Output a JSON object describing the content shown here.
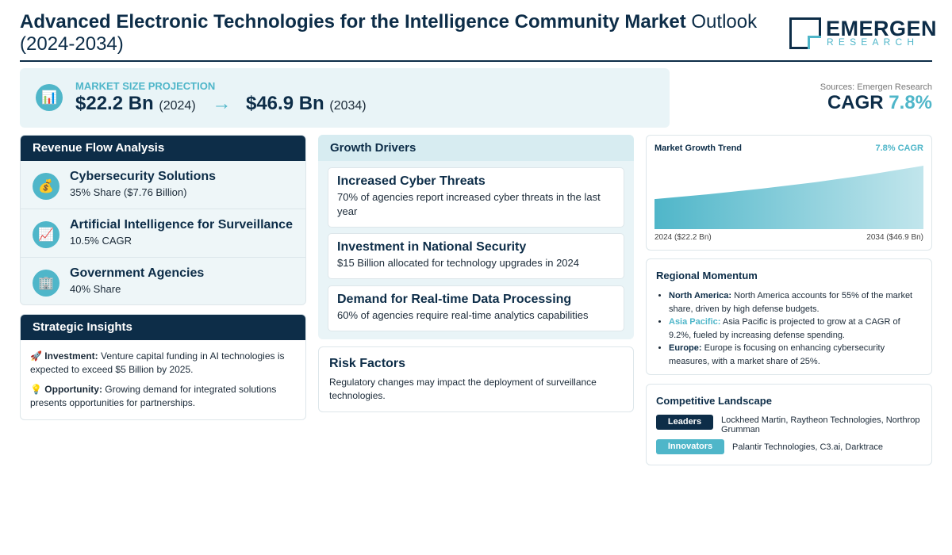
{
  "header": {
    "title_bold": "Advanced Electronic Technologies for the Intelligence Community Market",
    "title_light": "Outlook (2024-2034)",
    "logo_word": "EMERGEN",
    "logo_sub": "RESEARCH"
  },
  "projection": {
    "icon": "bar-chart-icon",
    "label": "MARKET SIZE PROJECTION",
    "start_value": "$22.2 Bn",
    "start_year": "(2024)",
    "arrow": "→",
    "end_value": "$46.9 Bn",
    "end_year": "(2034)"
  },
  "summary": {
    "sources": "Sources: Emergen Research",
    "cagr_label": "CAGR",
    "cagr_value": "7.8%"
  },
  "revenue": {
    "title": "Revenue Flow Analysis",
    "items": [
      {
        "icon": "money-bag-icon",
        "glyph": "💰",
        "title": "Cybersecurity Solutions",
        "sub": "35% Share ($7.76 Billion)"
      },
      {
        "icon": "trend-chart-icon",
        "glyph": "📈",
        "title": "Artificial Intelligence for Surveillance",
        "sub": "10.5% CAGR"
      },
      {
        "icon": "office-building-icon",
        "glyph": "🏢",
        "title": "Government Agencies",
        "sub": "40% Share"
      }
    ]
  },
  "insights": {
    "title": "Strategic Insights",
    "items": [
      {
        "icon": "rocket-icon",
        "glyph": "🚀",
        "label": "Investment:",
        "text": "Venture capital funding in AI technologies is expected to exceed $5 Billion by 2025."
      },
      {
        "icon": "lightbulb-icon",
        "glyph": "💡",
        "label": "Opportunity:",
        "text": "Growing demand for integrated solutions presents opportunities for partnerships."
      }
    ]
  },
  "drivers": {
    "title": "Growth Drivers",
    "items": [
      {
        "title": "Increased Cyber Threats",
        "sub": "70% of agencies report increased cyber threats in the last year"
      },
      {
        "title": "Investment in National Security",
        "sub": "$15 Billion allocated for technology upgrades in 2024"
      },
      {
        "title": "Demand for Real-time Data Processing",
        "sub": "60% of agencies require real-time analytics capabilities"
      }
    ]
  },
  "risk": {
    "title": "Risk Factors",
    "text": "Regulatory changes may impact the deployment of surveillance technologies."
  },
  "trend": {
    "title": "Market Growth Trend",
    "cagr": "7.8% CAGR",
    "start_label": "2024 ($22.2 Bn)",
    "end_label": "2034 ($46.9 Bn)",
    "fill_color": "#4fb6c9"
  },
  "chart_data": {
    "type": "area",
    "x": [
      2024,
      2034
    ],
    "values": [
      22.2,
      46.9
    ],
    "title": "Market Growth Trend",
    "xlabel": "",
    "ylabel": ""
  },
  "region": {
    "title": "Regional Momentum",
    "items": [
      {
        "label": "North America:",
        "text": "North America accounts for 55% of the market share, driven by high defense budgets."
      },
      {
        "label": "Asia Pacific:",
        "text": "Asia Pacific is projected to grow at a CAGR of 9.2%, fueled by increasing defense spending."
      },
      {
        "label": "Europe:",
        "text": "Europe is focusing on enhancing cybersecurity measures, with a market share of 25%."
      }
    ]
  },
  "competitive": {
    "title": "Competitive Landscape",
    "rows": [
      {
        "badge": "Leaders",
        "text": "Lockheed Martin, Raytheon Technologies, Northrop Grumman"
      },
      {
        "badge": "Innovators",
        "text": "Palantir Technologies, C3.ai, Darktrace"
      }
    ]
  },
  "colors": {
    "navy": "#0d2d48",
    "teal": "#4fb6c9",
    "panel": "#e9f4f7"
  }
}
